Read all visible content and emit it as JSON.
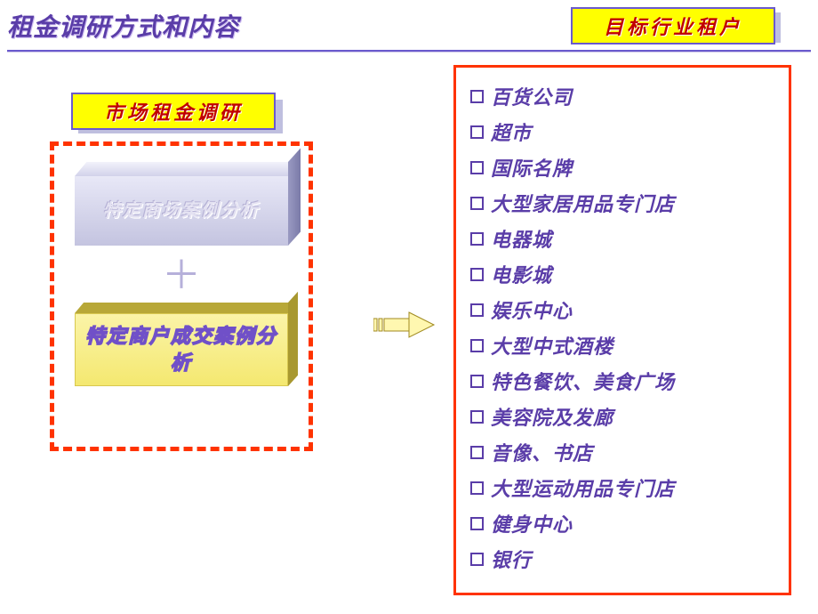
{
  "header": {
    "main_title": "租金调研方式和内容",
    "right_title": "目标行业租户"
  },
  "left": {
    "label": "市场租金调研",
    "block_silver": "特定商场案例分析",
    "plus": "＋",
    "block_gold": "特定商户成交案例分析"
  },
  "arrow": {
    "fill": "#fff7b0",
    "stroke": "#a08a20"
  },
  "list": {
    "items": [
      "百货公司",
      "超市",
      "国际名牌",
      "大型家居用品专门店",
      "电器城",
      "电影城",
      "娱乐中心",
      "大型中式酒楼",
      "特色餐饮、美食广场",
      "美容院及发廊",
      "音像、书店",
      "大型运动用品专门店",
      "健身中心",
      "银行"
    ]
  },
  "colors": {
    "title": "#5a3da8",
    "divider": "#6a5acd",
    "yellow_box_bg": "#ffff00",
    "yellow_box_text": "#c00000",
    "dashed_border": "#ff3300",
    "list_border": "#ff3300",
    "list_text": "#5a3da8",
    "plus": "#b6b0da"
  }
}
